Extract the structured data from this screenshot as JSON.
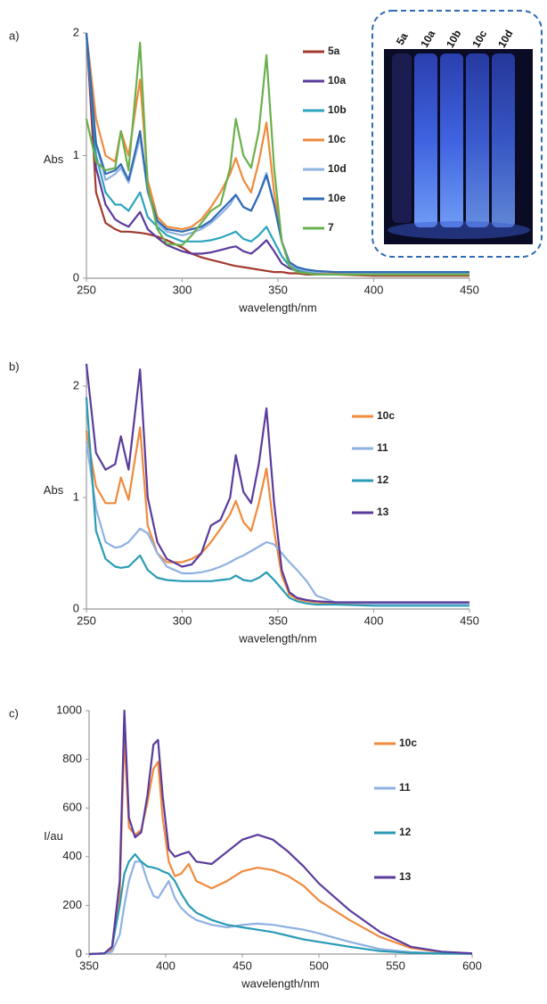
{
  "chart_data": [
    {
      "type": "line",
      "panel_label": "a)",
      "y_label": "Abs",
      "x_label": "wavelength/nm",
      "xlim": [
        250,
        450
      ],
      "xticks": [
        250,
        300,
        350,
        400,
        450
      ],
      "ylim": [
        0,
        2
      ],
      "yticks": [
        0,
        1,
        2
      ],
      "inset_labels": [
        "5a",
        "10a",
        "10b",
        "10c",
        "10d"
      ],
      "x": [
        250,
        255,
        260,
        265,
        268,
        272,
        278,
        282,
        287,
        292,
        300,
        305,
        310,
        315,
        320,
        325,
        328,
        332,
        336,
        340,
        344,
        348,
        352,
        356,
        360,
        365,
        370,
        380,
        400,
        425,
        450
      ],
      "series": [
        {
          "name": "5a",
          "color": "#a33a2e",
          "values": [
            2,
            0.7,
            0.45,
            0.4,
            0.38,
            0.38,
            0.37,
            0.36,
            0.34,
            0.31,
            0.25,
            0.2,
            0.17,
            0.15,
            0.13,
            0.11,
            0.1,
            0.09,
            0.08,
            0.07,
            0.06,
            0.05,
            0.05,
            0.04,
            0.04,
            0.03,
            0.03,
            0.03,
            0.02,
            0.02,
            0.02
          ]
        },
        {
          "name": "10a",
          "color": "#5a3b9c",
          "values": [
            2,
            0.9,
            0.6,
            0.48,
            0.45,
            0.42,
            0.54,
            0.4,
            0.33,
            0.27,
            0.22,
            0.2,
            0.2,
            0.21,
            0.23,
            0.25,
            0.26,
            0.22,
            0.2,
            0.25,
            0.31,
            0.22,
            0.12,
            0.08,
            0.06,
            0.05,
            0.04,
            0.04,
            0.03,
            0.03,
            0.03
          ]
        },
        {
          "name": "10b",
          "color": "#2ba3be",
          "values": [
            2,
            1.0,
            0.7,
            0.6,
            0.6,
            0.55,
            0.7,
            0.5,
            0.42,
            0.35,
            0.3,
            0.3,
            0.3,
            0.31,
            0.33,
            0.36,
            0.38,
            0.32,
            0.3,
            0.35,
            0.42,
            0.3,
            0.18,
            0.1,
            0.07,
            0.05,
            0.05,
            0.04,
            0.03,
            0.03,
            0.03
          ]
        },
        {
          "name": "10c",
          "color": "#f08a3c",
          "values": [
            2,
            1.3,
            1.0,
            0.95,
            1.2,
            1.0,
            1.62,
            0.8,
            0.5,
            0.42,
            0.4,
            0.42,
            0.48,
            0.58,
            0.7,
            0.85,
            0.98,
            0.8,
            0.7,
            0.95,
            1.27,
            0.7,
            0.3,
            0.12,
            0.08,
            0.06,
            0.05,
            0.04,
            0.04,
            0.04,
            0.04
          ]
        },
        {
          "name": "10d",
          "color": "#8fb1e2",
          "values": [
            2,
            1.1,
            0.8,
            0.85,
            0.9,
            0.78,
            1.15,
            0.7,
            0.45,
            0.38,
            0.35,
            0.37,
            0.4,
            0.45,
            0.52,
            0.6,
            0.68,
            0.58,
            0.55,
            0.68,
            0.86,
            0.6,
            0.3,
            0.12,
            0.08,
            0.06,
            0.05,
            0.05,
            0.04,
            0.04,
            0.04
          ]
        },
        {
          "name": "10e",
          "color": "#2f6bb5",
          "values": [
            2,
            1.1,
            0.85,
            0.88,
            0.93,
            0.8,
            1.2,
            0.72,
            0.47,
            0.4,
            0.38,
            0.4,
            0.42,
            0.47,
            0.55,
            0.63,
            0.68,
            0.58,
            0.55,
            0.68,
            0.84,
            0.6,
            0.3,
            0.13,
            0.09,
            0.07,
            0.06,
            0.05,
            0.05,
            0.05,
            0.05
          ]
        },
        {
          "name": "7",
          "color": "#6ab04c",
          "values": [
            1.3,
            0.95,
            0.88,
            0.9,
            1.2,
            0.88,
            1.92,
            0.75,
            0.4,
            0.28,
            0.27,
            0.35,
            0.45,
            0.55,
            0.6,
            0.9,
            1.3,
            1.0,
            0.9,
            1.2,
            1.82,
            0.9,
            0.3,
            0.1,
            0.05,
            0.04,
            0.03,
            0.03,
            0.03,
            0.03,
            0.03
          ]
        }
      ]
    },
    {
      "type": "line",
      "panel_label": "b)",
      "y_label": "Abs",
      "x_label": "wavelength/nm",
      "xlim": [
        250,
        450
      ],
      "xticks": [
        250,
        300,
        350,
        400,
        450
      ],
      "ylim": [
        0,
        2.2
      ],
      "yticks": [
        0,
        1,
        2
      ],
      "x": [
        250,
        255,
        260,
        265,
        268,
        272,
        278,
        282,
        287,
        292,
        300,
        305,
        310,
        315,
        320,
        325,
        328,
        332,
        336,
        340,
        344,
        348,
        352,
        356,
        360,
        365,
        370,
        380,
        400,
        425,
        450
      ],
      "series": [
        {
          "name": "10c",
          "color": "#f08a3c",
          "values": [
            1.6,
            1.1,
            0.95,
            0.95,
            1.18,
            0.98,
            1.63,
            0.75,
            0.5,
            0.42,
            0.42,
            0.45,
            0.5,
            0.6,
            0.72,
            0.85,
            0.97,
            0.78,
            0.7,
            0.95,
            1.26,
            0.7,
            0.3,
            0.13,
            0.09,
            0.07,
            0.06,
            0.05,
            0.05,
            0.05,
            0.05
          ]
        },
        {
          "name": "11",
          "color": "#8fb1e2",
          "values": [
            1.5,
            0.9,
            0.6,
            0.55,
            0.56,
            0.6,
            0.72,
            0.68,
            0.5,
            0.38,
            0.32,
            0.32,
            0.33,
            0.35,
            0.38,
            0.42,
            0.45,
            0.48,
            0.52,
            0.56,
            0.6,
            0.58,
            0.5,
            0.42,
            0.35,
            0.25,
            0.12,
            0.06,
            0.05,
            0.05,
            0.05
          ]
        },
        {
          "name": "12",
          "color": "#2a9bb5",
          "values": [
            1.9,
            0.7,
            0.45,
            0.38,
            0.37,
            0.38,
            0.48,
            0.35,
            0.28,
            0.26,
            0.25,
            0.25,
            0.25,
            0.25,
            0.26,
            0.27,
            0.3,
            0.26,
            0.25,
            0.28,
            0.33,
            0.26,
            0.18,
            0.1,
            0.07,
            0.05,
            0.04,
            0.04,
            0.03,
            0.03,
            0.03
          ]
        },
        {
          "name": "13",
          "color": "#5a3b9c",
          "values": [
            2.2,
            1.4,
            1.25,
            1.3,
            1.55,
            1.25,
            2.15,
            1.0,
            0.6,
            0.45,
            0.38,
            0.4,
            0.5,
            0.75,
            0.8,
            1.0,
            1.38,
            1.05,
            0.95,
            1.3,
            1.8,
            0.95,
            0.35,
            0.15,
            0.1,
            0.08,
            0.07,
            0.06,
            0.06,
            0.06,
            0.06
          ]
        }
      ]
    },
    {
      "type": "line",
      "panel_label": "c)",
      "y_label": "I/au",
      "x_label": "wavelength/nm",
      "xlim": [
        350,
        600
      ],
      "xticks": [
        350,
        400,
        450,
        500,
        550,
        600
      ],
      "ylim": [
        0,
        1000
      ],
      "yticks": [
        0,
        200,
        400,
        600,
        800,
        1000
      ],
      "x": [
        350,
        360,
        365,
        370,
        373,
        376,
        380,
        384,
        388,
        392,
        395,
        398,
        402,
        406,
        410,
        415,
        420,
        430,
        440,
        450,
        460,
        470,
        480,
        490,
        500,
        520,
        540,
        560,
        580,
        600
      ],
      "series": [
        {
          "name": "10c",
          "color": "#f08a3c",
          "values": [
            0,
            2,
            20,
            250,
            900,
            520,
            490,
            510,
            620,
            760,
            790,
            560,
            380,
            320,
            330,
            370,
            300,
            270,
            300,
            340,
            355,
            345,
            320,
            280,
            220,
            140,
            70,
            25,
            8,
            3
          ]
        },
        {
          "name": "11",
          "color": "#8fb1e2",
          "values": [
            0,
            2,
            10,
            80,
            200,
            300,
            380,
            380,
            300,
            240,
            230,
            260,
            300,
            230,
            190,
            160,
            140,
            120,
            110,
            120,
            125,
            120,
            110,
            100,
            85,
            50,
            20,
            8,
            3,
            1
          ]
        },
        {
          "name": "12",
          "color": "#2a9bb5",
          "values": [
            0,
            3,
            30,
            200,
            330,
            380,
            410,
            380,
            360,
            355,
            350,
            340,
            330,
            300,
            250,
            200,
            170,
            140,
            120,
            110,
            100,
            90,
            75,
            60,
            50,
            30,
            12,
            5,
            2,
            1
          ]
        },
        {
          "name": "13",
          "color": "#5a3b9c",
          "values": [
            0,
            3,
            30,
            300,
            1000,
            560,
            480,
            500,
            650,
            860,
            880,
            650,
            430,
            400,
            410,
            420,
            380,
            370,
            420,
            470,
            490,
            470,
            420,
            360,
            290,
            180,
            90,
            30,
            10,
            3
          ]
        }
      ]
    }
  ]
}
